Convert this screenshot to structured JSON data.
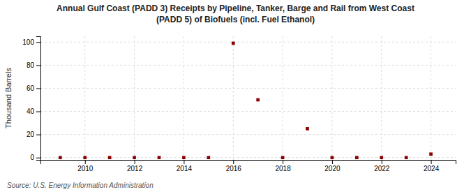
{
  "chart_data": {
    "type": "scatter",
    "title": "Annual Gulf Coast (PADD 3) Receipts by Pipeline, Tanker, Barge and Rail from West Coast",
    "subtitle": "(PADD 5) of Biofuels (incl. Fuel Ethanol)",
    "ylabel": "Thousand Barrels",
    "annotations": [
      "Source: U.S. Energy Information Administration"
    ],
    "x": [
      2009,
      2010,
      2011,
      2012,
      2013,
      2014,
      2015,
      2016,
      2017,
      2018,
      2019,
      2020,
      2021,
      2022,
      2023,
      2024
    ],
    "values": [
      0,
      0,
      0,
      0,
      0,
      0,
      0,
      99,
      50,
      0,
      25,
      0,
      0,
      0,
      0,
      3
    ],
    "color": "#8b0000",
    "marker": "square",
    "xlim": [
      2008.2,
      2025.0
    ],
    "ylim": [
      -2,
      105
    ],
    "xticks": [
      2010,
      2012,
      2014,
      2016,
      2018,
      2020,
      2022,
      2024
    ],
    "yticks": [
      0,
      20,
      40,
      60,
      80,
      100
    ],
    "grid": true
  }
}
